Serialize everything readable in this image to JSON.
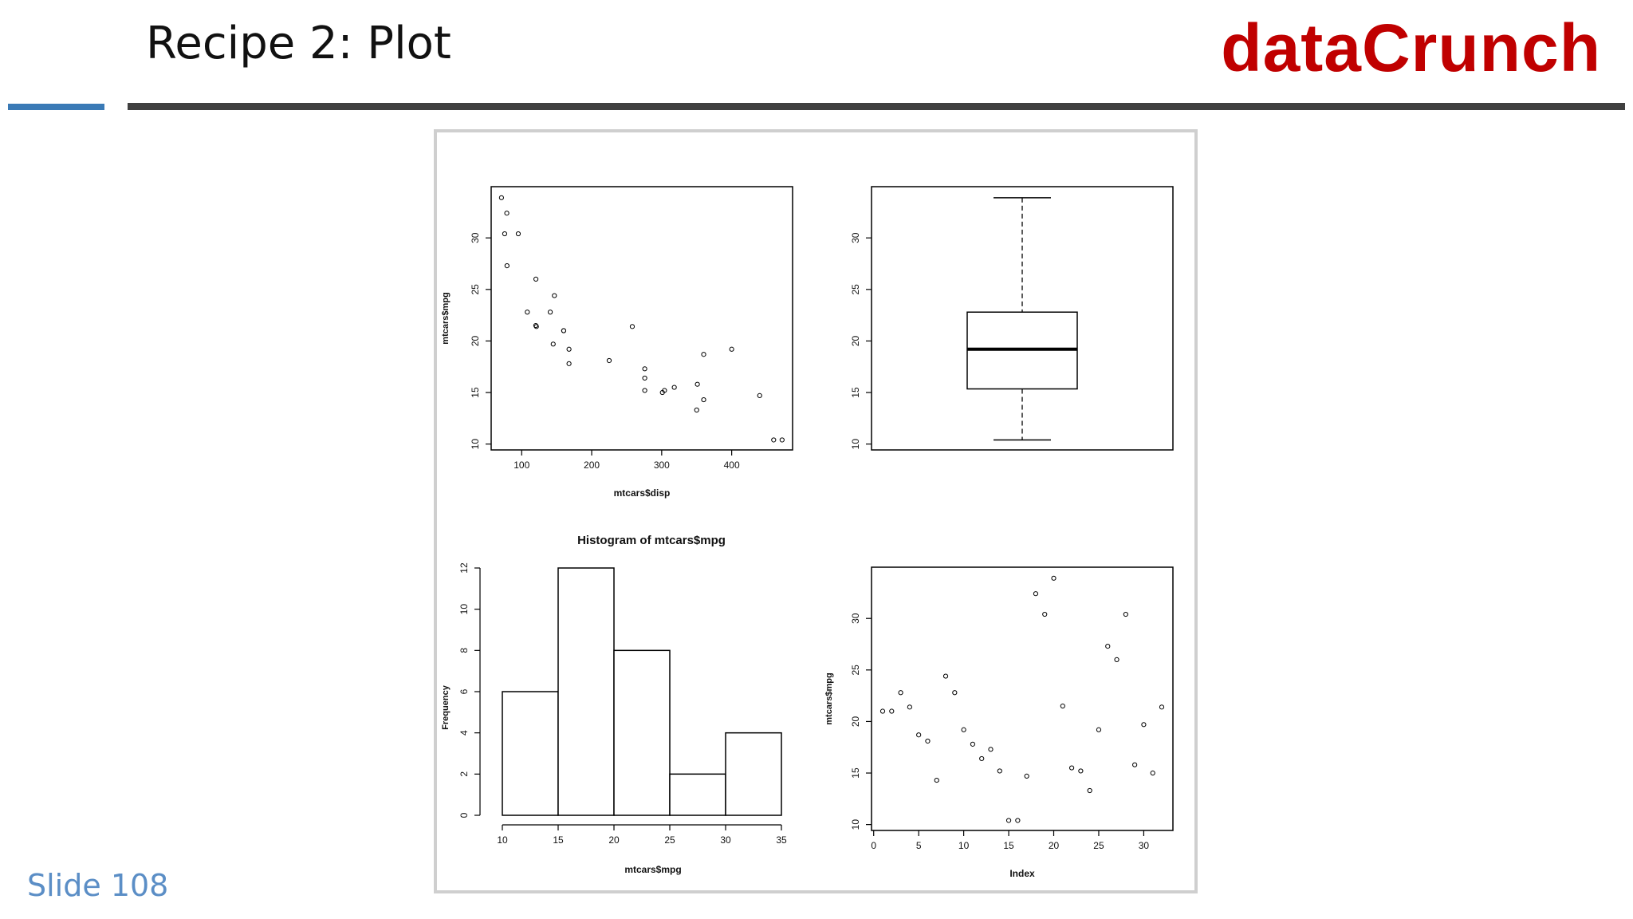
{
  "slide": {
    "title": "Recipe 2: Plot",
    "brand": "dataCrunch",
    "slide_number": "Slide 108",
    "colors": {
      "brand": "#c00000",
      "accent_rule": "#3a7ab6",
      "rule": "#404040",
      "slide_number": "#5b8ec6"
    }
  },
  "chart_data": [
    {
      "type": "scatter",
      "title": "",
      "xlabel": "mtcars$disp",
      "ylabel": "mtcars$mpg",
      "xticks": [
        100,
        200,
        300,
        400
      ],
      "yticks": [
        10,
        15,
        20,
        25,
        30
      ],
      "xlim": [
        56.4,
        487.0
      ],
      "ylim": [
        9.43,
        34.97
      ],
      "points": [
        [
          160,
          21.0
        ],
        [
          160,
          21.0
        ],
        [
          108,
          22.8
        ],
        [
          258,
          21.4
        ],
        [
          360,
          18.7
        ],
        [
          225,
          18.1
        ],
        [
          360,
          14.3
        ],
        [
          146.7,
          24.4
        ],
        [
          140.8,
          22.8
        ],
        [
          167.6,
          19.2
        ],
        [
          167.6,
          17.8
        ],
        [
          275.8,
          16.4
        ],
        [
          275.8,
          17.3
        ],
        [
          275.8,
          15.2
        ],
        [
          472,
          10.4
        ],
        [
          460,
          10.4
        ],
        [
          440,
          14.7
        ],
        [
          78.7,
          32.4
        ],
        [
          75.7,
          30.4
        ],
        [
          71.1,
          33.9
        ],
        [
          120.1,
          21.5
        ],
        [
          318,
          15.5
        ],
        [
          304,
          15.2
        ],
        [
          350,
          13.3
        ],
        [
          400,
          19.2
        ],
        [
          79,
          27.3
        ],
        [
          120.3,
          26.0
        ],
        [
          95.1,
          30.4
        ],
        [
          351,
          15.8
        ],
        [
          145,
          19.7
        ],
        [
          301,
          15.0
        ],
        [
          121,
          21.4
        ]
      ]
    },
    {
      "type": "box",
      "title": "",
      "yticks": [
        10,
        15,
        20,
        25,
        30
      ],
      "ylim": [
        9.43,
        34.97
      ],
      "stats": {
        "min": 10.4,
        "q1": 15.35,
        "median": 19.2,
        "q3": 22.8,
        "max": 33.9
      }
    },
    {
      "type": "bar",
      "title": "Histogram of mtcars$mpg",
      "xlabel": "mtcars$mpg",
      "ylabel": "Frequency",
      "bins": [
        [
          10,
          15
        ],
        [
          15,
          20
        ],
        [
          20,
          25
        ],
        [
          25,
          30
        ],
        [
          30,
          35
        ]
      ],
      "values": [
        6,
        12,
        8,
        2,
        4
      ],
      "xticks": [
        10,
        15,
        20,
        25,
        30,
        35
      ],
      "yticks": [
        0,
        2,
        4,
        6,
        8,
        10,
        12
      ],
      "ylim": [
        0,
        12
      ]
    },
    {
      "type": "scatter",
      "title": "",
      "xlabel": "Index",
      "ylabel": "mtcars$mpg",
      "xticks": [
        0,
        5,
        10,
        15,
        20,
        25,
        30
      ],
      "yticks": [
        10,
        15,
        20,
        25,
        30
      ],
      "xlim": [
        -0.24,
        33.24
      ],
      "ylim": [
        9.43,
        34.97
      ],
      "values": [
        21.0,
        21.0,
        22.8,
        21.4,
        18.7,
        18.1,
        14.3,
        24.4,
        22.8,
        19.2,
        17.8,
        16.4,
        17.3,
        15.2,
        10.4,
        10.4,
        14.7,
        32.4,
        30.4,
        33.9,
        21.5,
        15.5,
        15.2,
        13.3,
        19.2,
        27.3,
        26.0,
        30.4,
        15.8,
        19.7,
        15.0,
        21.4
      ]
    }
  ]
}
